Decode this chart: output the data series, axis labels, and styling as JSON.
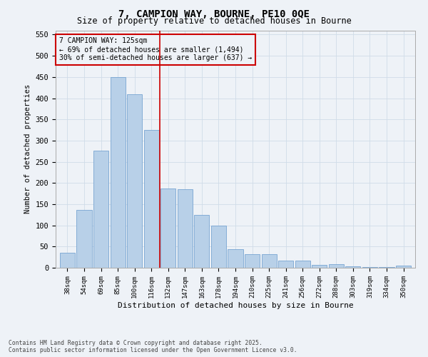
{
  "title": "7, CAMPION WAY, BOURNE, PE10 0QE",
  "subtitle": "Size of property relative to detached houses in Bourne",
  "xlabel": "Distribution of detached houses by size in Bourne",
  "ylabel": "Number of detached properties",
  "categories": [
    "38sqm",
    "54sqm",
    "69sqm",
    "85sqm",
    "100sqm",
    "116sqm",
    "132sqm",
    "147sqm",
    "163sqm",
    "178sqm",
    "194sqm",
    "210sqm",
    "225sqm",
    "241sqm",
    "256sqm",
    "272sqm",
    "288sqm",
    "303sqm",
    "319sqm",
    "334sqm",
    "350sqm"
  ],
  "values": [
    35,
    137,
    276,
    450,
    410,
    325,
    187,
    185,
    125,
    100,
    44,
    32,
    32,
    17,
    17,
    7,
    8,
    3,
    2,
    2,
    5
  ],
  "bar_color": "#b8d0e8",
  "bar_edge_color": "#6699cc",
  "grid_color": "#d0dce8",
  "background_color": "#eef2f7",
  "vline_x_index": 5.5,
  "vline_color": "#cc0000",
  "annotation_title": "7 CAMPION WAY: 125sqm",
  "annotation_line1": "← 69% of detached houses are smaller (1,494)",
  "annotation_line2": "30% of semi-detached houses are larger (637) →",
  "annotation_box_color": "#cc0000",
  "ylim": [
    0,
    560
  ],
  "yticks": [
    0,
    50,
    100,
    150,
    200,
    250,
    300,
    350,
    400,
    450,
    500,
    550
  ],
  "footer_line1": "Contains HM Land Registry data © Crown copyright and database right 2025.",
  "footer_line2": "Contains public sector information licensed under the Open Government Licence v3.0."
}
